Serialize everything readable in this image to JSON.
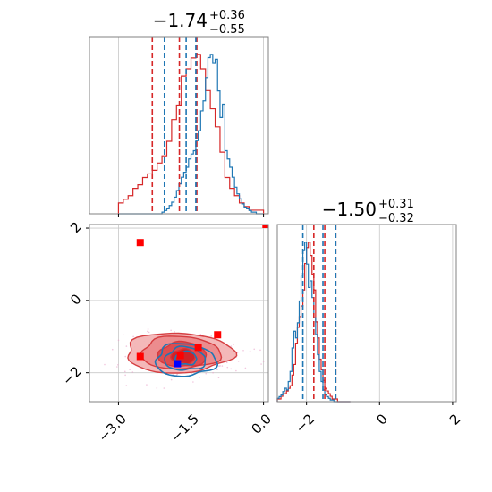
{
  "chart_data": {
    "type": "corner",
    "grid": true,
    "colors": {
      "blue": "#1f77b4",
      "red": "#d62728",
      "red_fill": "#f0a0a2",
      "red_dark": "#d43538",
      "blue_marker": "#0000ff",
      "red_marker": "#ff0000",
      "spine": "#808080",
      "grid": "#c8c8c8"
    },
    "params": [
      {
        "id": "p1",
        "title": {
          "median": "−1.74",
          "plus": "+0.36",
          "minus": "−0.55"
        },
        "range": [
          -3.6,
          0.1
        ],
        "ticks": [
          {
            "value": -3.0,
            "label": "−3.0"
          },
          {
            "value": -1.5,
            "label": "−1.5"
          },
          {
            "value": 0.0,
            "label": "0.0"
          }
        ],
        "quantiles_blue": [
          -2.05,
          -1.6,
          -1.4
        ],
        "quantiles_red": [
          -2.3,
          -1.74,
          -1.38
        ],
        "hist_blue": {
          "start": -3.0,
          "step": 0.05,
          "counts": [
            0,
            0,
            0,
            0,
            0,
            0,
            0,
            0,
            0,
            0,
            0,
            0,
            0,
            0,
            0,
            0,
            0,
            0,
            1,
            2,
            3,
            5,
            7,
            10,
            14,
            18,
            22,
            25,
            28,
            33,
            36,
            38,
            44,
            50,
            62,
            68,
            82,
            94,
            96,
            91,
            93,
            74,
            58,
            66,
            38,
            33,
            28,
            22,
            16,
            12,
            9,
            6,
            4,
            3,
            2,
            1,
            1,
            0,
            0,
            0
          ]
        },
        "hist_red": {
          "start": -3.0,
          "step": 0.1,
          "counts": [
            3,
            4,
            5,
            7,
            8,
            10,
            11,
            12,
            14,
            16,
            20,
            26,
            30,
            38,
            40,
            43,
            44,
            40,
            34,
            29,
            24,
            17,
            10,
            7,
            5,
            3,
            2,
            1,
            1,
            1
          ]
        }
      },
      {
        "id": "p2",
        "title": {
          "median": "−1.50",
          "plus": "+0.31",
          "minus": "−0.32"
        },
        "range": [
          -2.8,
          2.1
        ],
        "ticks": [
          {
            "value": -2,
            "label": "−2"
          },
          {
            "value": 0,
            "label": "0"
          },
          {
            "value": 2,
            "label": "2"
          }
        ],
        "quantiles_blue": [
          -2.1,
          -1.55,
          -1.2
        ],
        "quantiles_red": [
          -1.8,
          -1.5,
          -1.2
        ],
        "hist_blue": {
          "start": -2.8,
          "step": 0.05,
          "counts": [
            2,
            3,
            4,
            6,
            8,
            7,
            12,
            18,
            32,
            42,
            38,
            47,
            60,
            75,
            90,
            95,
            82,
            68,
            72,
            62,
            50,
            40,
            28,
            18,
            12,
            7,
            4,
            3,
            2,
            1,
            1,
            0,
            0,
            0,
            0,
            0,
            0,
            0,
            0,
            0
          ]
        },
        "hist_red": {
          "start": -2.8,
          "step": 0.05,
          "counts": [
            1,
            1,
            2,
            3,
            3,
            4,
            5,
            6,
            10,
            14,
            22,
            28,
            32,
            36,
            42,
            52,
            58,
            60,
            55,
            48,
            42,
            30,
            24,
            16,
            12,
            8,
            5,
            4,
            3,
            2,
            1,
            1,
            1,
            0,
            0,
            0,
            0,
            0,
            0,
            0
          ]
        }
      }
    ],
    "joint": {
      "x_param": "p1",
      "y_param": "p2",
      "red_levels": [
        {
          "cx": -1.76,
          "cy": -1.45,
          "rx": 1.1,
          "ry": 0.55,
          "fill": "#f4b5b6"
        },
        {
          "cx": -1.72,
          "cy": -1.45,
          "rx": 0.82,
          "ry": 0.45,
          "fill": "#ec8a8c"
        },
        {
          "cx": -1.68,
          "cy": -1.5,
          "rx": 0.5,
          "ry": 0.34,
          "fill": "#de4a4d"
        },
        {
          "cx": -1.66,
          "cy": -1.55,
          "rx": 0.25,
          "ry": 0.2,
          "fill": "#d02025"
        }
      ],
      "blue_levels": [
        {
          "cx": -1.62,
          "cy": -1.65,
          "rx": 0.62,
          "ry": 0.45
        },
        {
          "cx": -1.62,
          "cy": -1.62,
          "rx": 0.42,
          "ry": 0.32
        },
        {
          "cx": -1.6,
          "cy": -1.6,
          "rx": 0.22,
          "ry": 0.18
        }
      ],
      "red_markers": [
        {
          "x": -2.55,
          "y": 1.6
        },
        {
          "x": -2.55,
          "y": -1.55
        },
        {
          "x": -1.72,
          "y": -1.52
        },
        {
          "x": -1.35,
          "y": -1.3
        },
        {
          "x": -0.95,
          "y": -0.95
        },
        {
          "x": 0.05,
          "y": 2.1
        }
      ],
      "blue_markers": [
        {
          "x": -1.78,
          "y": -1.75
        }
      ]
    }
  }
}
